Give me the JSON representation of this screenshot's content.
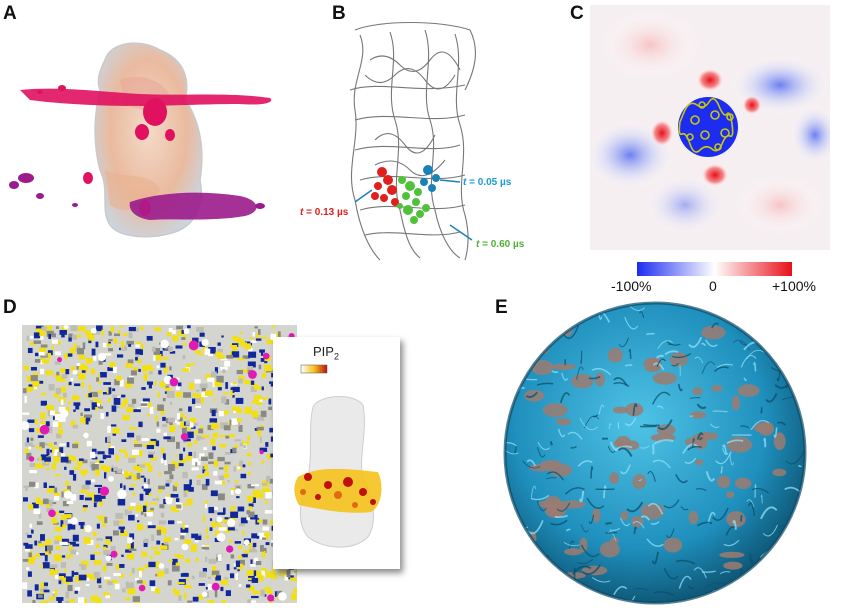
{
  "panels": {
    "a": {
      "label": "A"
    },
    "b": {
      "label": "B",
      "annotations": [
        {
          "prefix": "t",
          "text": " = 0.13 µs",
          "color": "#e0201b"
        },
        {
          "prefix": "t",
          "text": " = 0.05 µs",
          "color": "#1a9ad6"
        },
        {
          "prefix": "t",
          "text": " = 0.60 µs",
          "color": "#4fb233"
        }
      ]
    },
    "c": {
      "label": "C",
      "colorbar": {
        "min_label": "-100%",
        "mid_label": "0",
        "max_label": "+100%",
        "colors": [
          "#1c2cf0",
          "#ffffff",
          "#e8101a"
        ]
      }
    },
    "d": {
      "label": "D",
      "inset_title": "PIP",
      "inset_title_sub": "2"
    },
    "e": {
      "label": "E"
    }
  },
  "colors": {
    "magenta": "#e0115f",
    "purple": "#9b1b8c",
    "yellow": "#f2e012",
    "navy": "#10289a",
    "cyan": "#2aa8d6",
    "brown": "#9c7b70"
  }
}
